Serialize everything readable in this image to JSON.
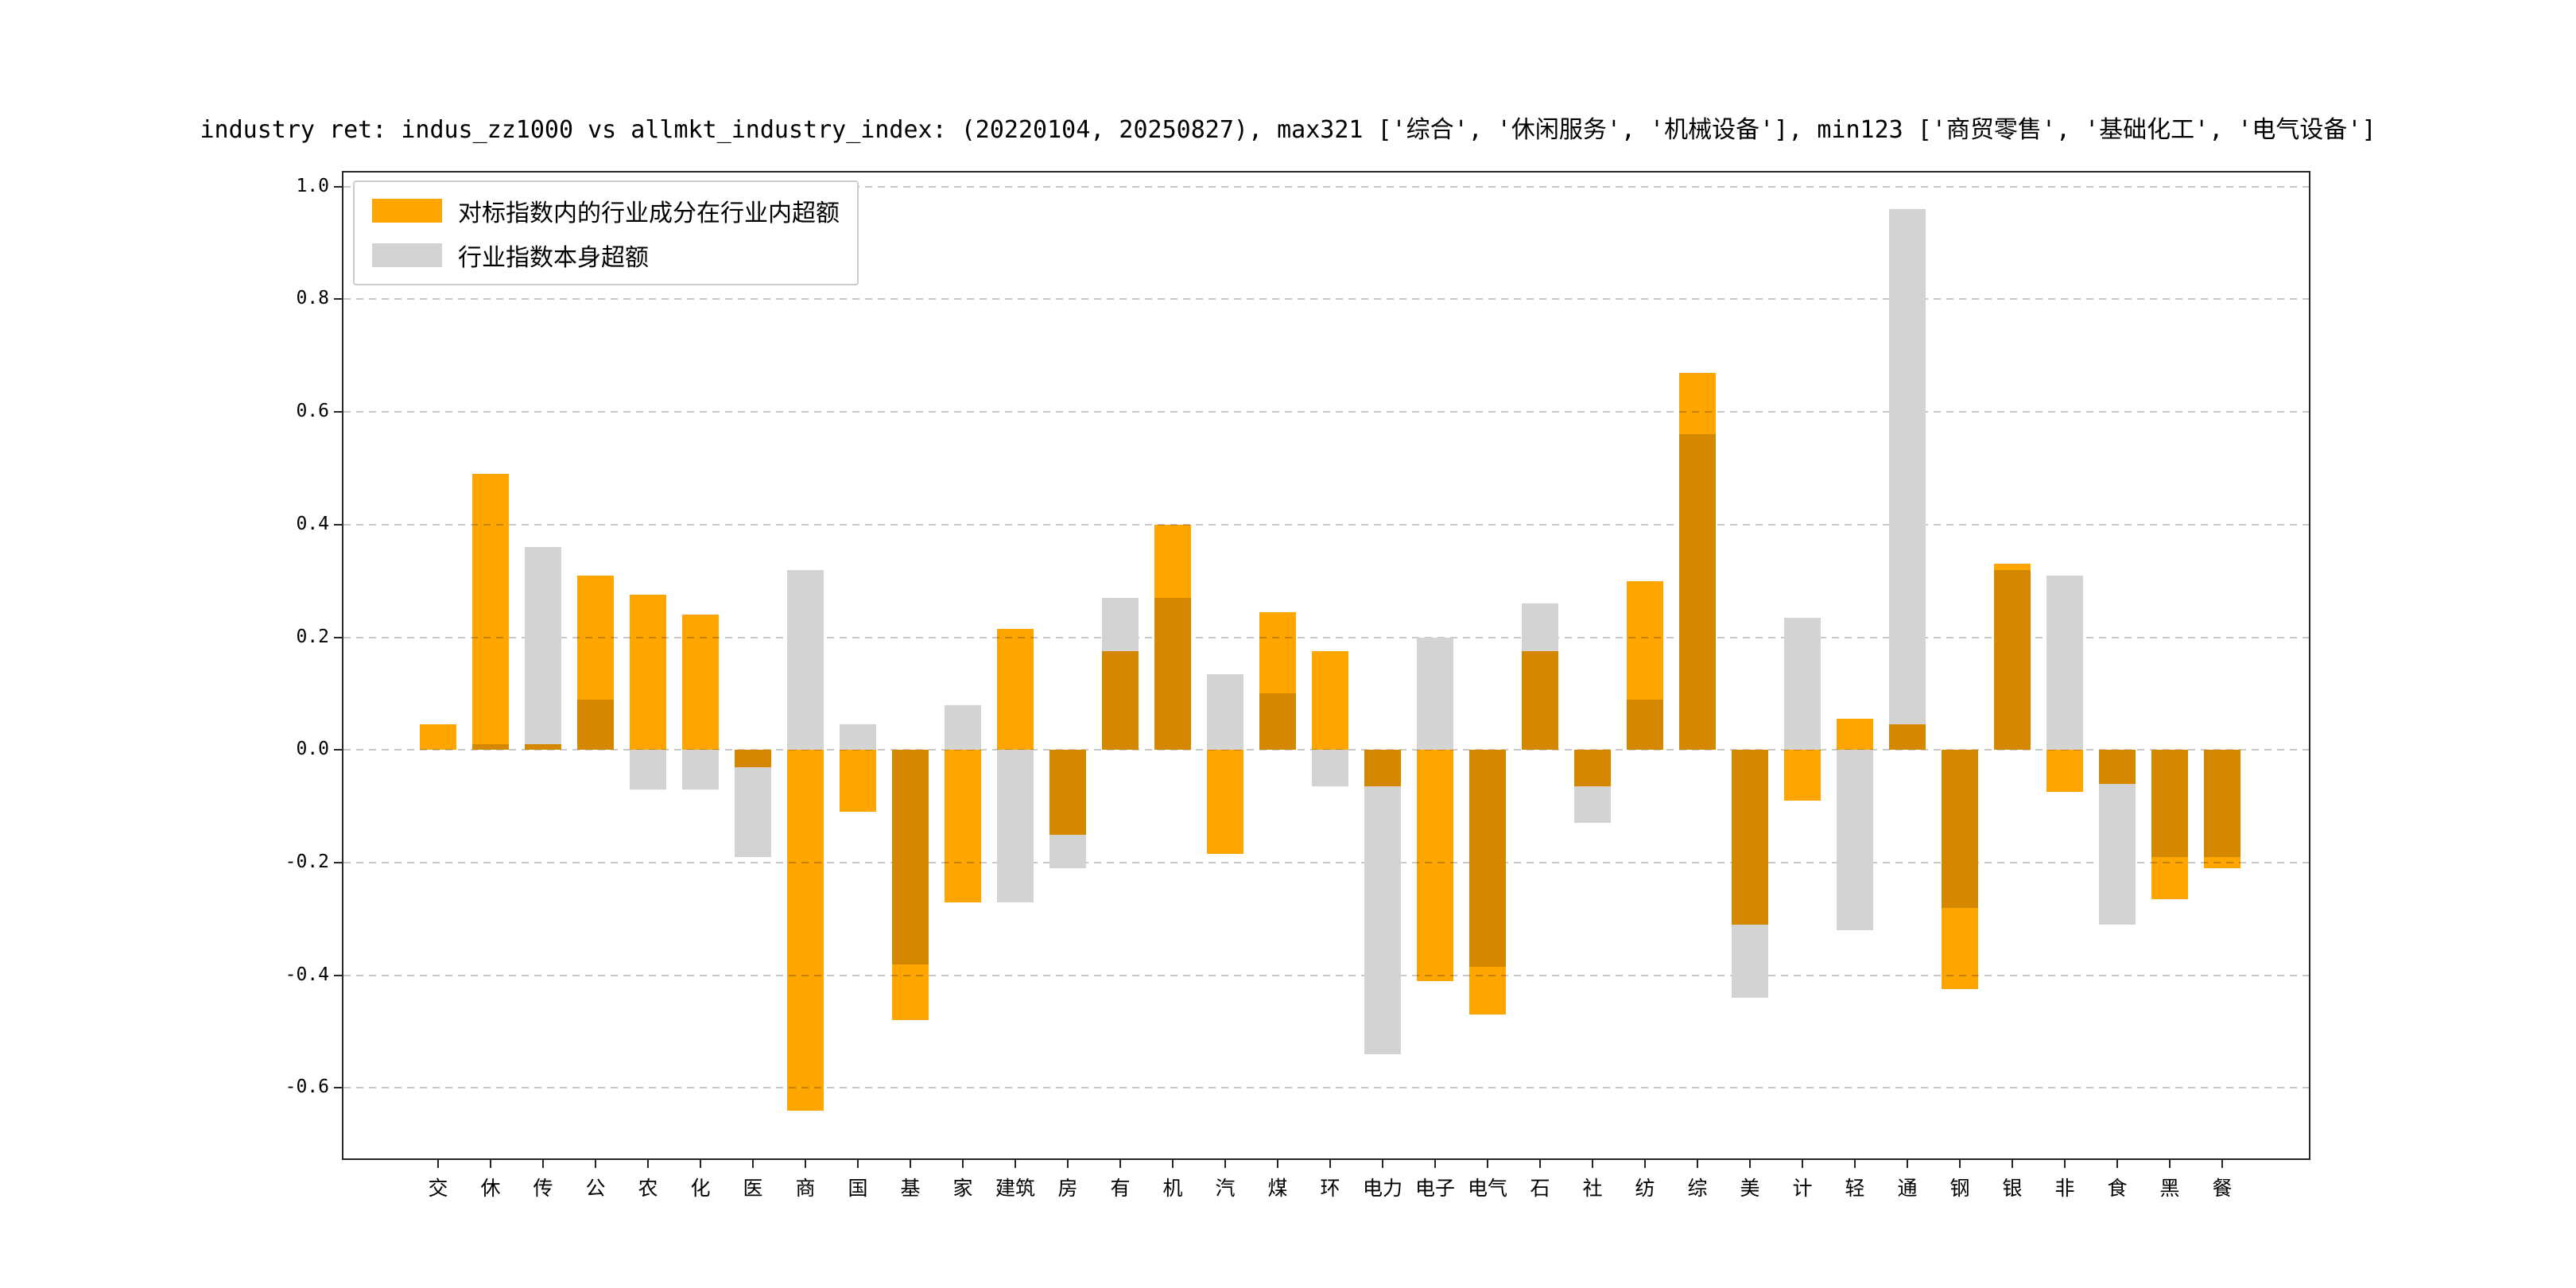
{
  "figure": {
    "title": "industry ret: indus_zz1000 vs allmkt_industry_index: (20220104, 20250827), max321 ['综合', '休闲服务', '机械设备'], min123 ['商贸零售', '基础化工', '电气设备']"
  },
  "legend": {
    "items": [
      {
        "label": "对标指数内的行业成分在行业内超额",
        "color": "#FFA500",
        "series": "component-excess"
      },
      {
        "label": "行业指数本身超额",
        "color": "#D3D3D3",
        "series": "index-excess"
      }
    ]
  },
  "chart_data": {
    "type": "bar",
    "title": "industry ret: indus_zz1000 vs allmkt_industry_index: (20220104, 20250827), max321 ['综合', '休闲服务', '机械设备'], min123 ['商贸零售', '基础化工', '电气设备']",
    "categories": [
      "交",
      "休",
      "传",
      "公",
      "农",
      "化",
      "医",
      "商",
      "国",
      "基",
      "家",
      "建筑",
      "房",
      "有",
      "机",
      "汽",
      "煤",
      "环",
      "电力",
      "电子",
      "电气",
      "石",
      "社",
      "纺",
      "综",
      "美",
      "计",
      "轻",
      "通",
      "钢",
      "银",
      "非",
      "食",
      "黑",
      "餐"
    ],
    "series": [
      {
        "name": "行业指数本身超额",
        "color": "#D3D3D3",
        "values": [
          0.0,
          0.01,
          0.36,
          0.09,
          -0.07,
          -0.07,
          -0.19,
          0.32,
          0.045,
          -0.38,
          0.08,
          -0.27,
          -0.21,
          0.27,
          0.27,
          0.135,
          0.1,
          -0.065,
          -0.54,
          0.2,
          -0.385,
          0.26,
          -0.13,
          0.09,
          0.56,
          -0.44,
          0.235,
          -0.32,
          0.96,
          -0.28,
          0.32,
          0.31,
          -0.31,
          -0.19,
          -0.19
        ]
      },
      {
        "name": "对标指数内的行业成分在行业内超额",
        "color": "#FFA500",
        "values": [
          0.045,
          0.49,
          0.01,
          0.31,
          0.275,
          0.24,
          -0.03,
          -0.64,
          -0.11,
          -0.48,
          -0.27,
          0.215,
          -0.15,
          0.175,
          0.4,
          -0.185,
          0.245,
          0.175,
          -0.065,
          -0.41,
          -0.47,
          0.175,
          -0.065,
          0.3,
          0.67,
          -0.31,
          -0.09,
          0.055,
          0.045,
          -0.425,
          0.33,
          -0.075,
          -0.06,
          -0.265,
          -0.21
        ]
      }
    ],
    "yticks": [
      1.0,
      0.8,
      0.6,
      0.4,
      0.2,
      0.0,
      -0.2,
      -0.4,
      -0.6
    ],
    "ylim": [
      -0.725,
      1.025
    ],
    "xlabel": "",
    "ylabel": "",
    "grid": true,
    "grid_style": "dashed",
    "legend_position": "upper left",
    "bar_style": "overlaid"
  }
}
